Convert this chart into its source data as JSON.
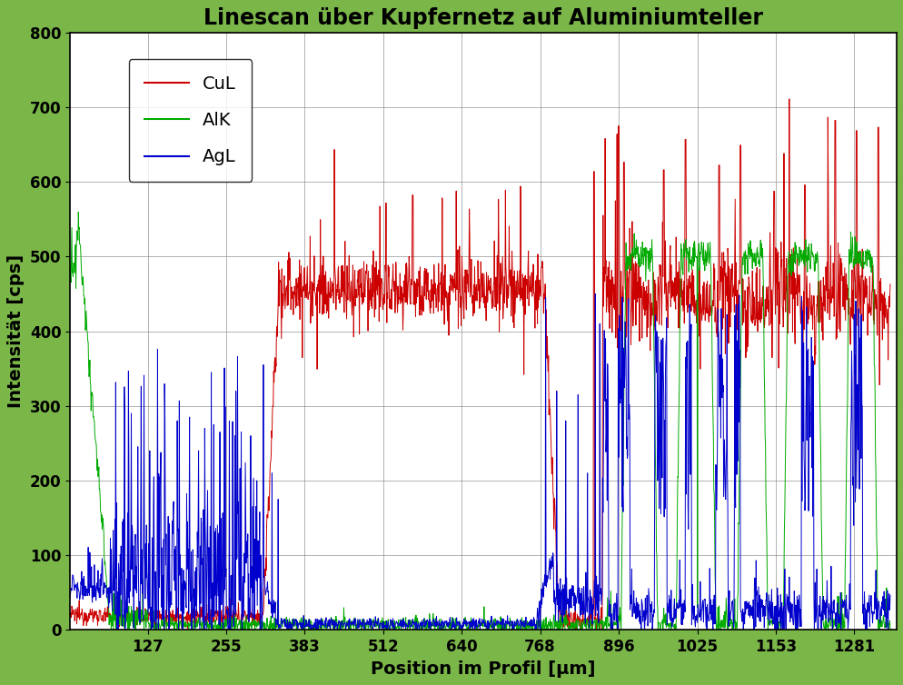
{
  "title": "Linescan über Kupfernetz auf Aluminiumteller",
  "xlabel": "Position im Profil [μm]",
  "ylabel": "Intensität [cps]",
  "xlim": [
    0,
    1350
  ],
  "ylim": [
    0,
    800
  ],
  "xticks": [
    127,
    255,
    383,
    512,
    640,
    768,
    896,
    1025,
    1153,
    1281
  ],
  "yticks": [
    0,
    100,
    200,
    300,
    400,
    500,
    600,
    700,
    800
  ],
  "legend_labels": [
    "CuL",
    "AlK",
    "AgL"
  ],
  "line_colors": [
    "#cc0000",
    "#00aa00",
    "#0000cc"
  ],
  "background_color": "#ffffff",
  "outer_background": "#7ab648",
  "title_fontsize": 17,
  "label_fontsize": 14,
  "tick_fontsize": 12,
  "legend_fontsize": 14
}
